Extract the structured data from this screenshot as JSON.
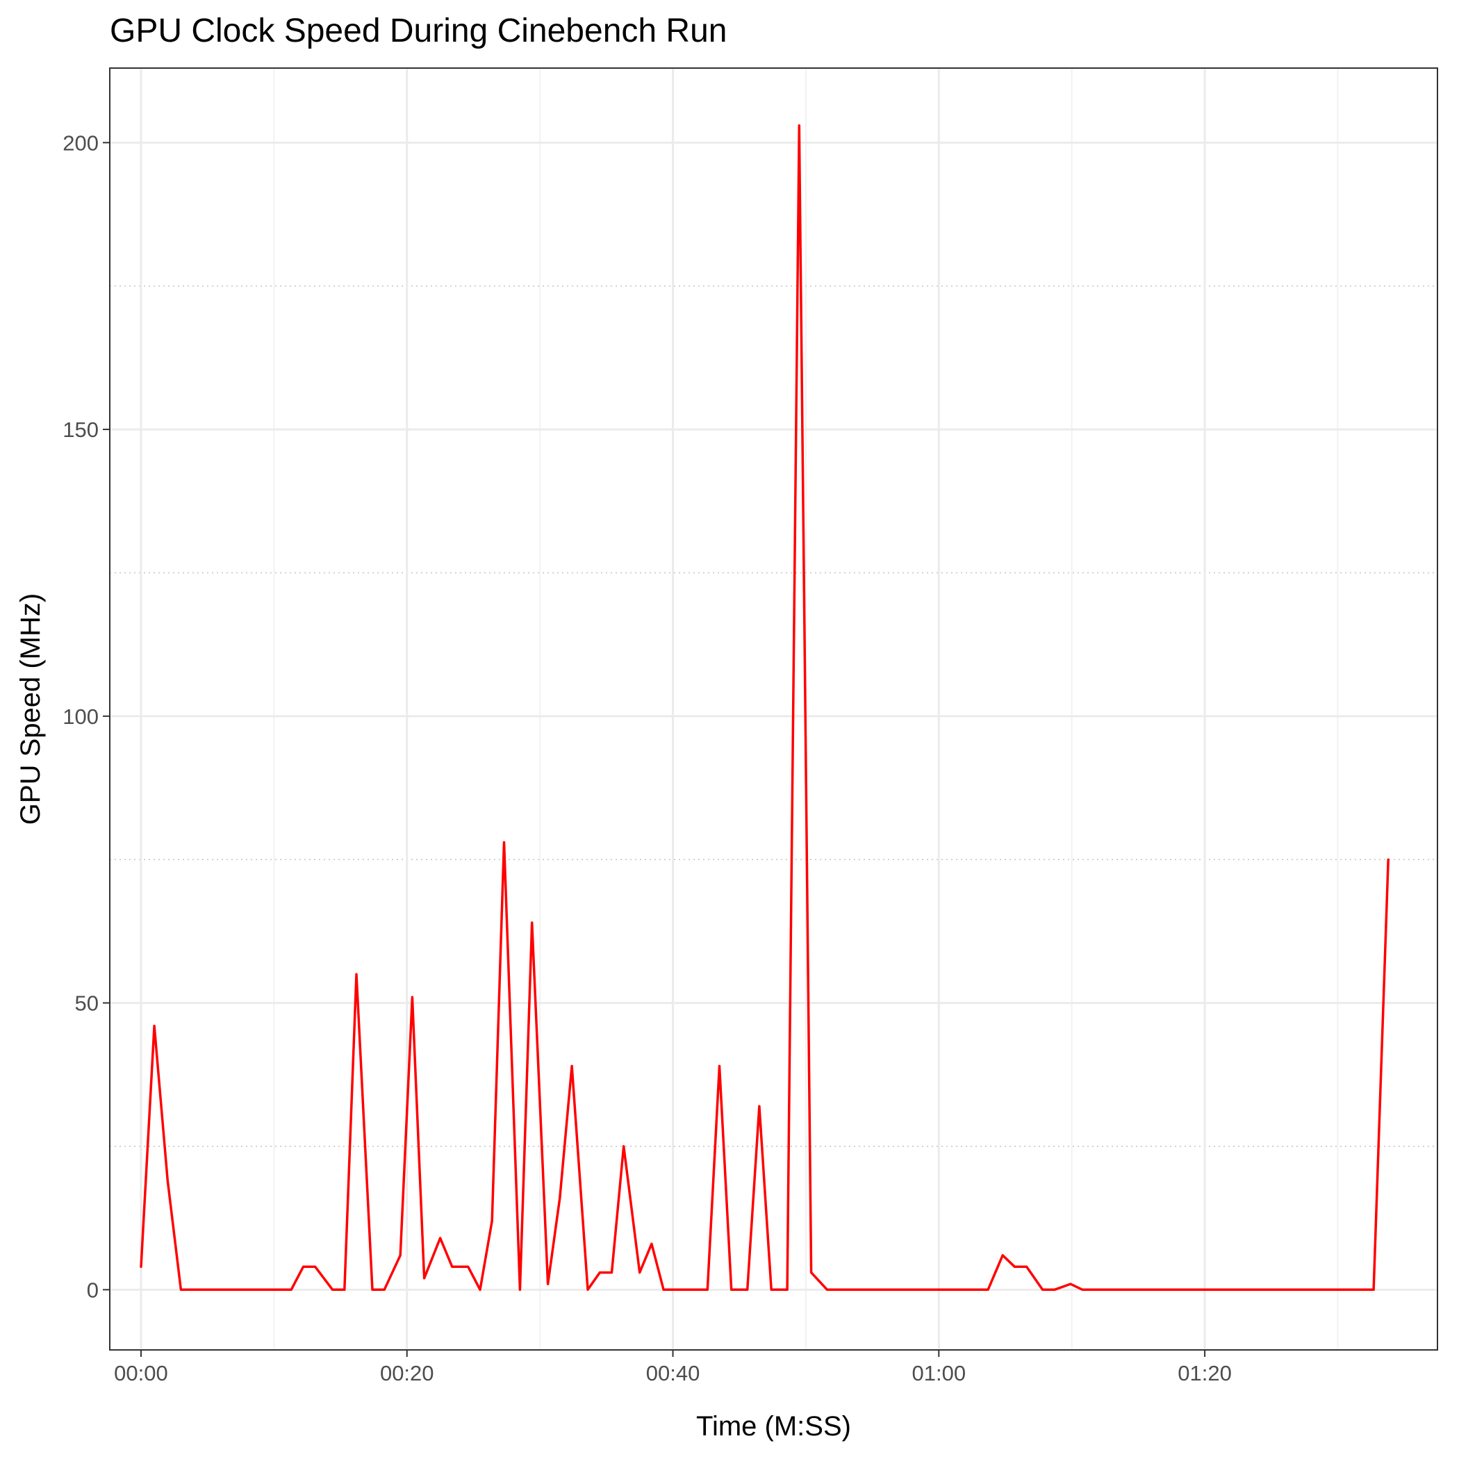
{
  "chart_data": {
    "type": "line",
    "title": "GPU Clock Speed During Cinebench Run",
    "xlabel": "Time (M:SS)",
    "ylabel": "GPU Speed (MHz)",
    "xlim": [
      -2.35,
      97.5
    ],
    "ylim": [
      -10.5,
      213
    ],
    "x_ticks": [
      {
        "value": 0,
        "label": "00:00"
      },
      {
        "value": 20,
        "label": "00:20"
      },
      {
        "value": 40,
        "label": "00:40"
      },
      {
        "value": 60,
        "label": "01:00"
      },
      {
        "value": 80,
        "label": "01:20"
      }
    ],
    "x_minor_ticks": [
      10,
      30,
      50,
      70,
      90
    ],
    "y_ticks": [
      {
        "value": 0,
        "label": "0"
      },
      {
        "value": 50,
        "label": "50"
      },
      {
        "value": 100,
        "label": "100"
      },
      {
        "value": 150,
        "label": "150"
      },
      {
        "value": 200,
        "label": "200"
      }
    ],
    "y_dotted_lines": [
      25,
      75,
      125,
      175
    ],
    "grid": true,
    "colors": {
      "line": "#ff0000",
      "panel_border": "#333333",
      "grid": "#ebebeb"
    },
    "series": [
      {
        "color": "#ff0000",
        "points": [
          [
            0,
            4
          ],
          [
            1,
            46
          ],
          [
            2,
            19
          ],
          [
            3,
            0
          ],
          [
            4,
            0
          ],
          [
            5,
            0
          ],
          [
            6,
            0
          ],
          [
            7,
            0
          ],
          [
            8,
            0
          ],
          [
            9,
            0
          ],
          [
            10,
            0
          ],
          [
            11.3,
            0
          ],
          [
            12.2,
            4
          ],
          [
            13.1,
            4
          ],
          [
            14.4,
            0
          ],
          [
            15.3,
            0
          ],
          [
            16.2,
            55
          ],
          [
            17.4,
            0
          ],
          [
            18.3,
            0
          ],
          [
            19.5,
            6
          ],
          [
            20.4,
            51
          ],
          [
            21.3,
            2
          ],
          [
            22.5,
            9
          ],
          [
            23.4,
            4
          ],
          [
            24.6,
            4
          ],
          [
            25.5,
            0
          ],
          [
            26.4,
            12
          ],
          [
            27.3,
            78
          ],
          [
            28.5,
            0
          ],
          [
            29.4,
            64
          ],
          [
            30.6,
            1
          ],
          [
            31.5,
            16
          ],
          [
            32.4,
            39
          ],
          [
            33.6,
            0
          ],
          [
            34.5,
            3
          ],
          [
            35.4,
            3
          ],
          [
            36.3,
            25
          ],
          [
            37.5,
            3
          ],
          [
            38.4,
            8
          ],
          [
            39.3,
            0
          ],
          [
            40.5,
            0
          ],
          [
            41.4,
            0
          ],
          [
            42.6,
            0
          ],
          [
            43.5,
            39
          ],
          [
            44.4,
            0
          ],
          [
            45.6,
            0
          ],
          [
            46.5,
            32
          ],
          [
            47.4,
            0
          ],
          [
            48.6,
            0
          ],
          [
            49.5,
            203
          ],
          [
            50.4,
            3
          ],
          [
            51.6,
            0
          ],
          [
            53,
            0
          ],
          [
            55,
            0
          ],
          [
            57,
            0
          ],
          [
            59,
            0
          ],
          [
            61,
            0
          ],
          [
            63,
            0
          ],
          [
            63.7,
            0
          ],
          [
            64.8,
            6
          ],
          [
            65.7,
            4
          ],
          [
            66.6,
            4
          ],
          [
            67.8,
            0
          ],
          [
            68.7,
            0
          ],
          [
            69.9,
            1
          ],
          [
            70.8,
            0
          ],
          [
            73,
            0
          ],
          [
            76,
            0
          ],
          [
            79,
            0
          ],
          [
            82,
            0
          ],
          [
            85,
            0
          ],
          [
            88,
            0
          ],
          [
            91,
            0
          ],
          [
            92.7,
            0
          ],
          [
            93.8,
            75
          ]
        ]
      }
    ]
  }
}
